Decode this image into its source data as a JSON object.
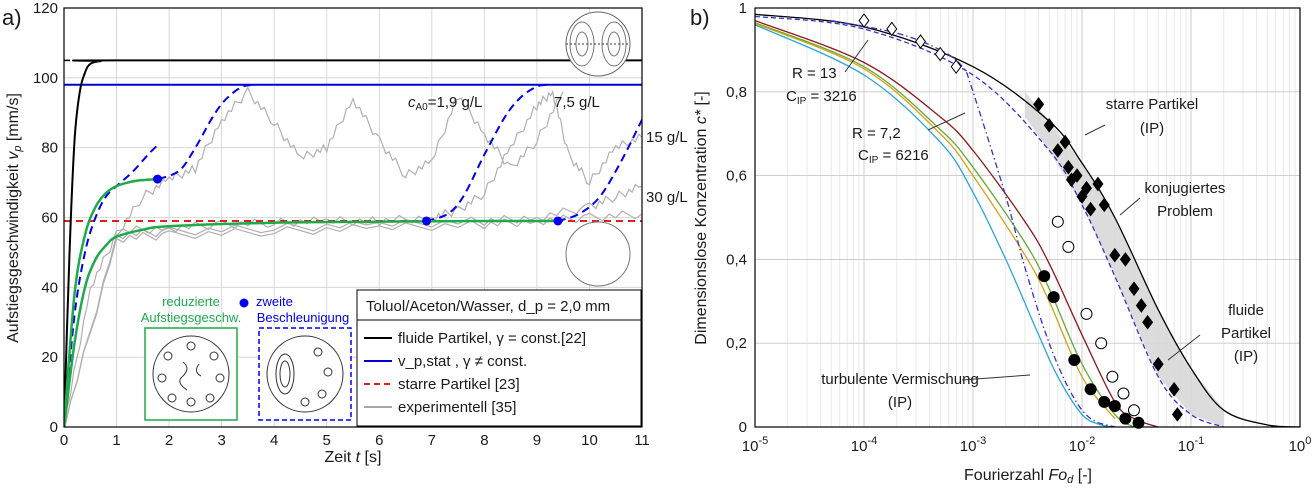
{
  "chart_data": [
    {
      "panel": "a)",
      "type": "line",
      "xlabel": "Zeit t [s]",
      "ylabel": "Aufstiegsgeschwindigkeit v_p [mm/s]",
      "xlim": [
        0,
        11
      ],
      "ylim": [
        0,
        120
      ],
      "xticks": [
        "0",
        "1",
        "2",
        "3",
        "4",
        "5",
        "6",
        "7",
        "8",
        "9",
        "10",
        "11"
      ],
      "yticks": [
        "0",
        "20",
        "40",
        "60",
        "80",
        "100",
        "120"
      ],
      "grid": true,
      "legend_title": "Toluol/Aceton/Wasser, d_p = 2,0 mm",
      "legend_position": "lower-right",
      "series": [
        {
          "name": "fluide Partikel, γ = const.[22]",
          "color": "#000000",
          "style": "solid",
          "x": [
            0,
            0.1,
            0.2,
            0.3,
            0.4,
            0.5,
            0.7,
            1,
            11
          ],
          "y": [
            0,
            48,
            82,
            96,
            101.5,
            104,
            104.8,
            105,
            105
          ]
        },
        {
          "name": "v_p,stat , γ ≠ const.",
          "color": "#0000cc",
          "style": "solid",
          "x": [
            0,
            11
          ],
          "y": [
            98,
            98
          ]
        },
        {
          "name": "starre Partikel [23]",
          "color": "#e02020",
          "style": "dashed",
          "x": [
            0,
            11
          ],
          "y": [
            59,
            59
          ]
        },
        {
          "name": "experimentell [35]",
          "color": "#a8a8a8",
          "style": "solid",
          "x": [],
          "y": []
        }
      ],
      "asymptote_black": {
        "x": [
          0,
          0.6
        ],
        "y": [
          105,
          105
        ]
      },
      "green_curves": [
        {
          "x": [
            0,
            0.2,
            0.4,
            0.6,
            0.8,
            1.0,
            1.3,
            1.5,
            1.8
          ],
          "y": [
            0,
            38,
            55,
            63,
            67,
            69,
            70.3,
            70.7,
            71
          ]
        },
        {
          "x": [
            0,
            0.2,
            0.4,
            0.6,
            0.8,
            1.0,
            1.5,
            2,
            4,
            6,
            8,
            9.4
          ],
          "y": [
            0,
            24,
            40,
            48,
            52,
            54.5,
            56.5,
            57.5,
            58.5,
            58.8,
            59,
            59
          ]
        }
      ],
      "blue_dashed_curves": [
        {
          "x": [
            0,
            0.2,
            0.4,
            0.6,
            0.8,
            1.0,
            1.3,
            1.6,
            1.8
          ],
          "y": [
            0,
            32,
            50,
            60,
            66,
            69,
            73,
            78,
            81
          ]
        },
        {
          "x": [
            1.8,
            2.2,
            2.5,
            2.8,
            3.0,
            3.2,
            3.4,
            3.6
          ],
          "y": [
            71,
            73.5,
            80,
            88,
            92.5,
            95.5,
            97.5,
            98
          ]
        },
        {
          "x": [
            6.9,
            7.3,
            7.6,
            8.0,
            8.4,
            8.7,
            9.0,
            9.2
          ],
          "y": [
            59,
            61,
            66,
            78,
            89,
            94.5,
            97.5,
            98
          ]
        },
        {
          "x": [
            9.4,
            9.8,
            10.2,
            10.6,
            11
          ],
          "y": [
            59,
            61,
            66,
            76,
            88
          ]
        }
      ],
      "gray_curves": [
        {
          "label": "c_A0 = 1,9 g/L",
          "x": [
            0,
            0.5,
            1,
            1.5,
            2,
            2.5,
            3,
            3.5,
            4,
            4.5,
            5,
            5.5,
            6,
            6.5,
            7,
            7.5,
            8,
            8.5,
            9,
            9.5
          ],
          "y": [
            0,
            40,
            55,
            66,
            71,
            74,
            88,
            96,
            87,
            77,
            80,
            94,
            82,
            72,
            76,
            95,
            84,
            74,
            82,
            96
          ]
        },
        {
          "label": "7,5 g/L",
          "x": [
            1,
            2,
            3,
            4,
            5,
            6,
            7,
            7.5,
            8,
            8.5,
            9,
            9.3,
            9.6,
            10,
            10.5,
            11
          ],
          "y": [
            56,
            57,
            58,
            58.5,
            59,
            59,
            60,
            62,
            67,
            80,
            92,
            96,
            78,
            70,
            80,
            83
          ]
        },
        {
          "label": "15 g/L",
          "x": [
            0,
            1,
            2,
            4,
            6,
            8,
            9,
            10,
            10.5,
            11
          ],
          "y": [
            0,
            55,
            56,
            57,
            58,
            59,
            60,
            63,
            66,
            69
          ]
        },
        {
          "label": "30 g/L",
          "x": [
            0,
            1,
            2,
            4,
            6,
            8,
            9,
            10,
            11
          ],
          "y": [
            0,
            54,
            55,
            56,
            57,
            58,
            59,
            60,
            61
          ]
        }
      ],
      "markers": [
        {
          "x": 1.78,
          "y": 71
        },
        {
          "x": 6.9,
          "y": 59
        },
        {
          "x": 9.4,
          "y": 59
        }
      ],
      "annotations": {
        "c1": "=1,9 g/L",
        "c1_prefix": "c",
        "c1_sub": "A0",
        "c2": "7,5 g/L",
        "c3": "15 g/L",
        "c4": "30 g/L",
        "reduced_line1": "reduzierte",
        "reduced_line2": "Aufstiegsgeschw.",
        "second_line1": "zweite",
        "second_line2": "Beschleunigung"
      }
    },
    {
      "panel": "b)",
      "type": "line",
      "xscale": "log",
      "xlabel": "Fourierzahl Fo_d [-]",
      "ylabel": "Dimensionslose Konzentration c* [-]",
      "xlim": [
        1e-05,
        1
      ],
      "ylim": [
        0,
        1
      ],
      "xticks": [
        "10-5",
        "10-4",
        "10-3",
        "10-2",
        "10-1",
        "100"
      ],
      "yticks": [
        "0",
        "0,2",
        "0,4",
        "0,6",
        "0,8",
        "1"
      ],
      "grid": true,
      "series": [
        {
          "name": "starre Partikel (IP)",
          "color": "#000000",
          "style": "solid",
          "x": [
            1e-05,
            0.0001,
            0.001,
            0.005,
            0.01,
            0.02,
            0.05,
            0.1,
            0.2,
            0.5,
            1
          ],
          "y": [
            0.985,
            0.955,
            0.86,
            0.73,
            0.63,
            0.5,
            0.28,
            0.14,
            0.04,
            0.005,
            0
          ]
        },
        {
          "name": "konjugiertes Problem",
          "color": "#3333cc",
          "style": "dashed",
          "x": [
            1e-05,
            0.0001,
            0.001,
            0.005,
            0.01,
            0.02,
            0.05,
            0.1,
            0.2
          ],
          "y": [
            0.98,
            0.95,
            0.84,
            0.66,
            0.53,
            0.36,
            0.12,
            0.03,
            0
          ]
        },
        {
          "name": "fluide Partikel (IP)",
          "color": "#8b1a1a",
          "style": "solid",
          "x": [
            1e-05,
            0.0001,
            0.0005,
            0.001,
            0.003,
            0.005,
            0.01,
            0.02,
            0.03,
            0.05
          ],
          "y": [
            0.97,
            0.87,
            0.74,
            0.66,
            0.49,
            0.39,
            0.22,
            0.06,
            0.02,
            0
          ]
        },
        {
          "name": "turbulente Vermischung (IP)",
          "color": "#2aa5d8",
          "style": "solid",
          "x": [
            1e-05,
            0.0001,
            0.0005,
            0.001,
            0.002,
            0.004,
            0.006,
            0.01,
            0.015,
            0.02
          ],
          "y": [
            0.96,
            0.84,
            0.68,
            0.56,
            0.4,
            0.22,
            0.12,
            0.03,
            0.005,
            0
          ]
        },
        {
          "name": "R = 13, C_IP = 3216",
          "color": "#66aa33",
          "style": "solid",
          "x": [
            1e-05,
            0.0001,
            0.0005,
            0.001,
            0.003,
            0.005,
            0.01,
            0.02,
            0.03
          ],
          "y": [
            0.965,
            0.86,
            0.71,
            0.62,
            0.44,
            0.33,
            0.15,
            0.03,
            0
          ]
        },
        {
          "name": "R = 7,2, C_IP = 6216",
          "color": "#d4a017",
          "style": "solid",
          "x": [
            1e-05,
            0.0001,
            0.0005,
            0.001,
            0.003,
            0.005,
            0.01,
            0.02
          ],
          "y": [
            0.963,
            0.855,
            0.7,
            0.6,
            0.41,
            0.3,
            0.12,
            0.02
          ]
        },
        {
          "name": "dash-dot",
          "color": "#3333cc",
          "style": "dashdot",
          "x": [
            5e-05,
            0.0002,
            0.0005,
            0.0008,
            0.001,
            0.002,
            0.003,
            0.005,
            0.008,
            0.012,
            0.02
          ],
          "y": [
            0.97,
            0.94,
            0.9,
            0.86,
            0.8,
            0.55,
            0.38,
            0.2,
            0.08,
            0.02,
            0
          ]
        }
      ],
      "band_upper": {
        "x": [
          0.003,
          0.005,
          0.01,
          0.02,
          0.05,
          0.1,
          0.2
        ],
        "y": [
          0.8,
          0.73,
          0.63,
          0.5,
          0.28,
          0.14,
          0.04
        ]
      },
      "band_lower": {
        "x": [
          0.003,
          0.005,
          0.01,
          0.02,
          0.05,
          0.1,
          0.2
        ],
        "y": [
          0.74,
          0.66,
          0.53,
          0.36,
          0.12,
          0.03,
          0
        ]
      },
      "markers_diamond_open": {
        "x": [
          0.0001,
          0.00018,
          0.00033,
          0.0005,
          0.0007
        ],
        "y": [
          0.97,
          0.95,
          0.92,
          0.89,
          0.86
        ]
      },
      "markers_diamond_filled": {
        "x": [
          0.004,
          0.005,
          0.006,
          0.007,
          0.0075,
          0.008,
          0.009,
          0.01,
          0.011,
          0.012,
          0.014,
          0.016,
          0.02,
          0.025,
          0.03,
          0.035,
          0.04,
          0.05,
          0.07,
          0.075
        ],
        "y": [
          0.77,
          0.72,
          0.66,
          0.68,
          0.62,
          0.59,
          0.6,
          0.55,
          0.57,
          0.52,
          0.58,
          0.53,
          0.41,
          0.4,
          0.33,
          0.29,
          0.25,
          0.15,
          0.09,
          0.03
        ]
      },
      "markers_circle_open": {
        "x": [
          0.006,
          0.0075,
          0.011,
          0.015,
          0.019,
          0.024,
          0.03
        ],
        "y": [
          0.49,
          0.43,
          0.27,
          0.2,
          0.12,
          0.08,
          0.04
        ]
      },
      "markers_circle_filled": {
        "x": [
          0.0045,
          0.0055,
          0.0085,
          0.012,
          0.016,
          0.02,
          0.025,
          0.033
        ],
        "y": [
          0.36,
          0.31,
          0.16,
          0.09,
          0.06,
          0.05,
          0.02,
          0.01
        ]
      },
      "annotations": {
        "r13_line1": "R = 13",
        "r13_line2_prefix": "C",
        "r13_line2_sub": "IP",
        "r13_line2_value": " = 3216",
        "r72_line1": "R = 7,2",
        "r72_line2_prefix": "C",
        "r72_line2_sub": "IP",
        "r72_line2_value": " = 6216",
        "rigid_line1": "starre Partikel",
        "rigid_line2": "(IP)",
        "conj_line1": "konjugiertes",
        "conj_line2": "Problem",
        "fluid_line1": "fluide",
        "fluid_line2": "Partikel",
        "fluid_line3": "(IP)",
        "turb_line1": "turbulente Vermischung",
        "turb_line2": "(IP)"
      }
    }
  ]
}
